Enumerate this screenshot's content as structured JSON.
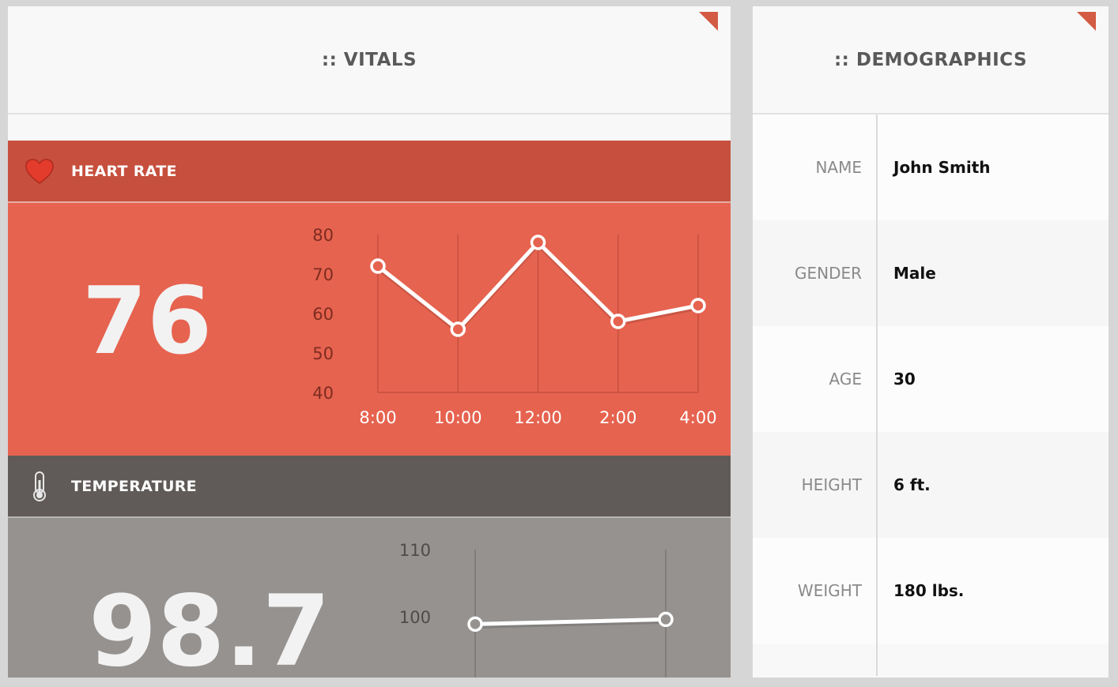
{
  "vitals": {
    "title": ":: VITALS",
    "heart_rate": {
      "label": "HEART RATE",
      "icon": "heart-icon",
      "value": "76",
      "color": "#e6634f",
      "bar_color": "#c64f3d"
    },
    "temperature": {
      "label": "TEMPERATURE",
      "icon": "thermometer-icon",
      "value": "98.7",
      "color": "#959290",
      "bar_color": "#605b58"
    }
  },
  "demographics": {
    "title": ":: DEMOGRAPHICS",
    "rows": [
      {
        "label": "NAME",
        "value": "John Smith"
      },
      {
        "label": "GENDER",
        "value": "Male"
      },
      {
        "label": "AGE",
        "value": "30"
      },
      {
        "label": "HEIGHT",
        "value": "6 ft."
      },
      {
        "label": "WEIGHT",
        "value": "180 lbs."
      }
    ]
  },
  "chart_data": [
    {
      "type": "line",
      "title": "",
      "categories": [
        "8:00",
        "10:00",
        "12:00",
        "2:00",
        "4:00"
      ],
      "series": [
        {
          "values": [
            72,
            56,
            78,
            58,
            62
          ]
        }
      ],
      "y_ticks": [
        "80",
        "70",
        "60",
        "50",
        "40"
      ],
      "ylim": [
        40,
        80
      ],
      "grid": true
    },
    {
      "type": "line",
      "title": "",
      "categories": [
        "",
        ""
      ],
      "series": [
        {
          "values": [
            98.9,
            99.6
          ]
        }
      ],
      "y_ticks": [
        "110",
        "100"
      ],
      "ylim": [
        90,
        110
      ],
      "grid": true
    }
  ]
}
